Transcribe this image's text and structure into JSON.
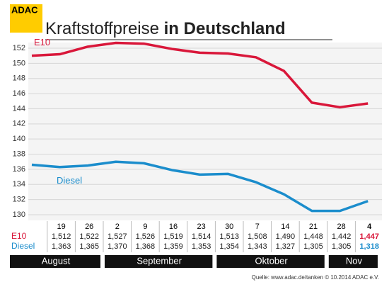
{
  "logo": "ADAC",
  "chart_data": {
    "type": "line",
    "title": "Kraftstoffpreise",
    "title_bold": "in Deutschland",
    "categories": [
      null,
      "19",
      "26",
      "2",
      "9",
      "16",
      "23",
      "30",
      "7",
      "14",
      "21",
      "28",
      "4"
    ],
    "months": [
      "August",
      "September",
      "Oktober",
      "Nov"
    ],
    "series": [
      {
        "name": "E10",
        "color": "#d9173a",
        "values": [
          151.0,
          151.2,
          152.2,
          152.7,
          152.6,
          151.9,
          151.4,
          151.3,
          150.8,
          149.0,
          144.8,
          144.2,
          144.7
        ],
        "value_labels": [
          null,
          "1,512",
          "1,522",
          "1,527",
          "1,526",
          "1,519",
          "1,514",
          "1,513",
          "1,508",
          "1,490",
          "1,448",
          "1,442",
          "1,447"
        ]
      },
      {
        "name": "Diesel",
        "color": "#1b8dcc",
        "values": [
          136.6,
          136.3,
          136.5,
          137.0,
          136.8,
          135.9,
          135.3,
          135.4,
          134.3,
          132.7,
          130.5,
          130.5,
          131.8
        ],
        "value_labels": [
          null,
          "1,363",
          "1,365",
          "1,370",
          "1,368",
          "1,359",
          "1,353",
          "1,354",
          "1,343",
          "1,327",
          "1,305",
          "1,305",
          "1,318"
        ]
      }
    ],
    "ylim": [
      130,
      152
    ],
    "yticks": [
      130,
      132,
      134,
      136,
      138,
      140,
      142,
      144,
      146,
      148,
      150,
      152
    ],
    "grid": true,
    "source": "Quelle: www.adac.de/tanken  © 10.2014  ADAC e.V."
  }
}
